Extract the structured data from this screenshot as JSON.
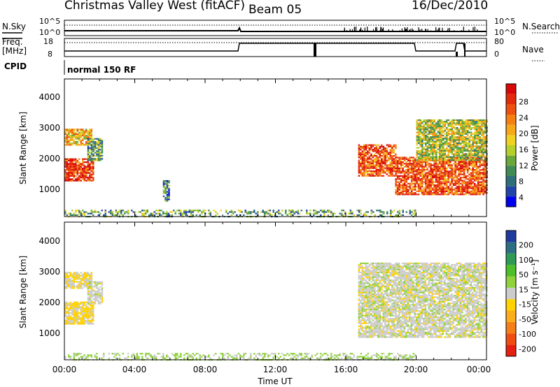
{
  "header": {
    "title": "Christmas Valley West (fitACF)",
    "beam": "Beam 05",
    "date": "16/Dec/2010"
  },
  "status": {
    "left_labels": [
      "N.Sky",
      "Freq.",
      "[MHz]",
      "CPID"
    ],
    "right_labels": [
      "N.Search",
      "Nave"
    ],
    "noise_ticks_left": [
      "10^5",
      "10^0"
    ],
    "noise_ticks_right": [
      "10^5",
      "10^0"
    ],
    "freq_ticks": [
      "18",
      "8"
    ],
    "nave_ticks": [
      "80",
      "0"
    ],
    "cpid_text": "normal 150 RF"
  },
  "axes": {
    "xlabel": "Time UT",
    "xticks": [
      "00:00",
      "04:00",
      "08:00",
      "12:00",
      "16:00",
      "20:00",
      "00:00"
    ],
    "ylabel": "Slant Range [km]",
    "yticks": [
      "1000",
      "2000",
      "3000",
      "4000"
    ]
  },
  "colorbars": {
    "power": {
      "label": "Power [dB]",
      "ticks": [
        "4",
        "8",
        "12",
        "16",
        "20",
        "24",
        "28"
      ],
      "colors": [
        "#0000ee",
        "#2244aa",
        "#2e6e7a",
        "#3f8a55",
        "#6aa83a",
        "#b6cf2a",
        "#f0d020",
        "#f7a818",
        "#f58012",
        "#ee5010",
        "#e42a0c",
        "#d80808"
      ]
    },
    "velocity": {
      "label": "Velocity [m s⁻¹]",
      "ticks": [
        "200",
        "100",
        "50",
        "15",
        "-15",
        "-50",
        "-100",
        "-200"
      ],
      "colors": [
        "#1f3a9e",
        "#2c6f85",
        "#2e9a55",
        "#4cbf2a",
        "#8fd23c",
        "#cccccc",
        "#ffd200",
        "#fbae1a",
        "#f57f17",
        "#ef4d12",
        "#e52010"
      ]
    }
  },
  "chart_data": [
    {
      "type": "heatmap",
      "title": "Christmas Valley West (fitACF)",
      "subtitle": "Beam 05",
      "xlabel": "Time UT",
      "ylabel": "Slant Range [km]",
      "xlim": [
        0,
        24
      ],
      "ylim": [
        180,
        4600
      ],
      "colorbar": "Power [dB]",
      "clim": [
        0,
        30
      ],
      "regions": [
        {
          "t": [
            0.0,
            1.6
          ],
          "range": [
            1350,
            2050
          ],
          "value": 26
        },
        {
          "t": [
            0.0,
            1.5
          ],
          "range": [
            2500,
            3000
          ],
          "value": 18
        },
        {
          "t": [
            1.3,
            2.1
          ],
          "range": [
            2000,
            2700
          ],
          "value": 10
        },
        {
          "t": [
            5.6,
            5.9
          ],
          "range": [
            700,
            1350
          ],
          "value": 8
        },
        {
          "t": [
            16.7,
            18.8
          ],
          "range": [
            1500,
            2500
          ],
          "value": 24
        },
        {
          "t": [
            18.8,
            24.0
          ],
          "range": [
            900,
            2100
          ],
          "value": 24
        },
        {
          "t": [
            20.0,
            24.0
          ],
          "range": [
            2000,
            3300
          ],
          "value": 14
        },
        {
          "t": [
            0.0,
            20.0
          ],
          "range": [
            200,
            400
          ],
          "value": 10
        }
      ]
    },
    {
      "type": "heatmap",
      "xlabel": "Time UT",
      "ylabel": "Slant Range [km]",
      "xlim": [
        0,
        24
      ],
      "ylim": [
        180,
        4600
      ],
      "colorbar": "Velocity [m s⁻¹]",
      "clim": [
        -200,
        200
      ],
      "regions": [
        {
          "t": [
            0.0,
            1.6
          ],
          "range": [
            1350,
            2050
          ],
          "value": -30
        },
        {
          "t": [
            0.0,
            1.5
          ],
          "range": [
            2500,
            3000
          ],
          "value": -20
        },
        {
          "t": [
            1.3,
            2.1
          ],
          "range": [
            2000,
            2700
          ],
          "value": 0
        },
        {
          "t": [
            16.7,
            24.0
          ],
          "range": [
            900,
            3300
          ],
          "value": 0
        },
        {
          "t": [
            0.0,
            20.0
          ],
          "range": [
            200,
            400
          ],
          "value": 30
        }
      ]
    }
  ]
}
